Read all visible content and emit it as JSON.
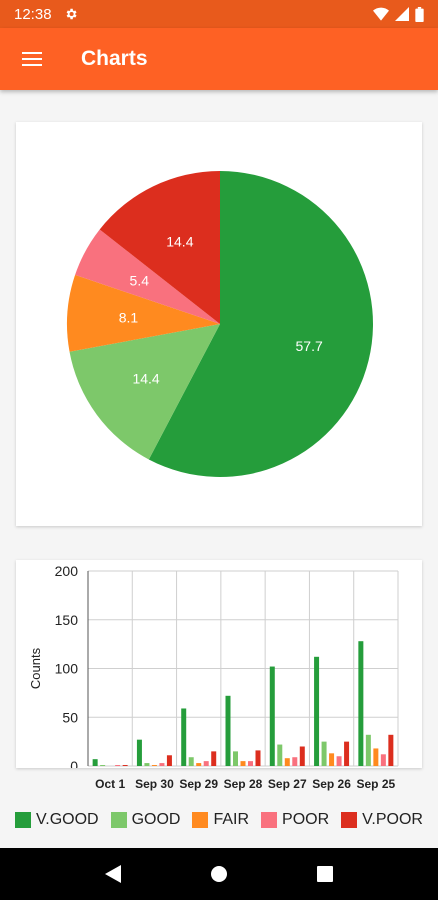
{
  "status_bar": {
    "time": "12:38",
    "icons": [
      "gear-icon",
      "wifi-icon",
      "cell-signal-icon",
      "battery-icon"
    ]
  },
  "app_bar": {
    "title": "Charts",
    "menu_icon": "hamburger-menu-icon"
  },
  "colors": {
    "accent": "#fe6124",
    "v_good": "#259d3b",
    "good": "#7dc86a",
    "fair": "#ff8a1f",
    "poor": "#f9717e",
    "v_poor": "#dc2e1e"
  },
  "chart_data": [
    {
      "type": "pie",
      "categories": [
        "V.GOOD",
        "GOOD",
        "FAIR",
        "POOR",
        "V.POOR"
      ],
      "values": [
        57.7,
        14.4,
        8.1,
        5.4,
        14.4
      ],
      "labels": [
        "57.7",
        "14.4",
        "8.1",
        "5.4",
        "14.4"
      ]
    },
    {
      "type": "bar",
      "categories": [
        "Oct 1",
        "Sep 30",
        "Sep 29",
        "Sep 28",
        "Sep 27",
        "Sep 26",
        "Sep 25"
      ],
      "ylabel": "Counts",
      "ylim": [
        0,
        200
      ],
      "yticks": [
        "0",
        "50",
        "100",
        "150",
        "200"
      ],
      "grid": true,
      "legend": "bottom",
      "series": [
        {
          "name": "V.GOOD",
          "values": [
            7,
            27,
            59,
            72,
            102,
            112,
            128
          ]
        },
        {
          "name": "GOOD",
          "values": [
            1,
            3,
            9,
            15,
            22,
            25,
            32
          ]
        },
        {
          "name": "FAIR",
          "values": [
            0,
            1,
            3,
            5,
            8,
            13,
            18
          ]
        },
        {
          "name": "POOR",
          "values": [
            1,
            3,
            5,
            5,
            9,
            10,
            12
          ]
        },
        {
          "name": "V.POOR",
          "values": [
            1,
            11,
            15,
            16,
            20,
            25,
            32
          ]
        }
      ]
    }
  ],
  "legend": [
    {
      "label": "V.GOOD",
      "color": "#259d3b"
    },
    {
      "label": "GOOD",
      "color": "#7dc86a"
    },
    {
      "label": "FAIR",
      "color": "#ff8a1f"
    },
    {
      "label": "POOR",
      "color": "#f9717e"
    },
    {
      "label": "V.POOR",
      "color": "#dc2e1e"
    }
  ],
  "nav_bar": {
    "icons": [
      "back-icon",
      "home-icon",
      "recents-icon"
    ]
  }
}
